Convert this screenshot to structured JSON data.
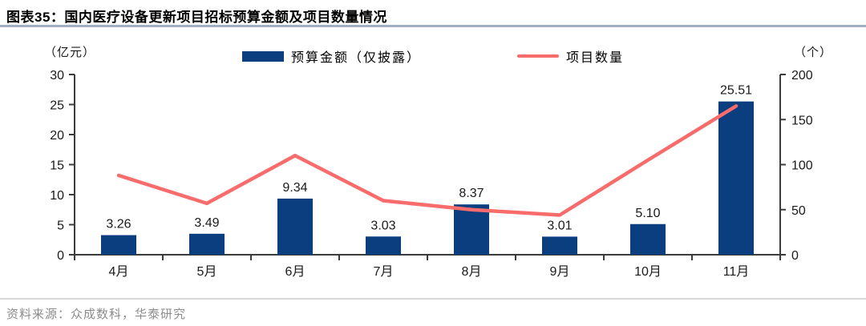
{
  "header": {
    "figure_label": "图表35：",
    "title": "国内医疗设备更新项目招标预算金额及项目数量情况"
  },
  "chart_data": {
    "type": "bar",
    "subtype": "bar+line combo, dual axis",
    "categories": [
      "4月",
      "5月",
      "6月",
      "7月",
      "8月",
      "9月",
      "10月",
      "11月"
    ],
    "series": [
      {
        "name": "预算金额（仅披露）",
        "type": "bar",
        "axis": "left",
        "color": "#0b3e7f",
        "values": [
          3.26,
          3.49,
          9.34,
          3.03,
          8.37,
          3.01,
          5.1,
          25.51
        ]
      },
      {
        "name": "项目数量",
        "type": "line",
        "axis": "right",
        "color": "#f96c6c",
        "values": [
          88,
          57,
          110,
          60,
          50,
          44,
          105,
          165
        ]
      }
    ],
    "bar_labels": [
      "3.26",
      "3.49",
      "9.34",
      "3.03",
      "8.37",
      "3.01",
      "5.10",
      "25.51"
    ],
    "left_axis": {
      "unit": "（亿元）",
      "min": 0,
      "max": 30,
      "ticks": [
        0,
        5,
        10,
        15,
        20,
        25,
        30
      ]
    },
    "right_axis": {
      "unit": "（个）",
      "min": 0,
      "max": 200,
      "ticks": [
        0,
        50,
        100,
        150,
        200
      ]
    },
    "grid": false,
    "legend_position": "top-center"
  },
  "footer": {
    "source": "资料来源：众成数科，华泰研究"
  },
  "colors": {
    "bar": "#0b3e7f",
    "line": "#f96c6c",
    "title_underline": "#9fafc4",
    "axis": "#3c3c3c",
    "source_text": "#8c8c8c",
    "source_divider": "#d9d9d9"
  }
}
